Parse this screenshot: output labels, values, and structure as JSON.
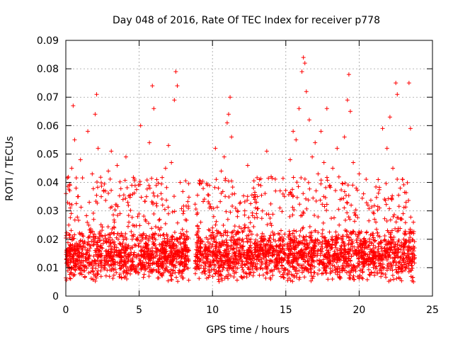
{
  "chart_data": {
    "type": "scatter",
    "title": "Day 048 of 2016, Rate Of TEC Index for receiver p778",
    "xlabel": "GPS time / hours",
    "ylabel": "ROTI / TECUs",
    "xlim": [
      0,
      25
    ],
    "ylim": [
      0,
      0.09
    ],
    "x_ticks": [
      0,
      5,
      10,
      15,
      20,
      25
    ],
    "x_tick_labels": [
      "0",
      "5",
      "10",
      "15",
      "20",
      "25"
    ],
    "y_ticks": [
      0,
      0.01,
      0.02,
      0.03,
      0.04,
      0.05,
      0.06,
      0.07,
      0.08,
      0.09
    ],
    "y_tick_labels": [
      "0",
      "0.01",
      "0.02",
      "0.03",
      "0.04",
      "0.05",
      "0.06",
      "0.07",
      "0.08",
      "0.09"
    ],
    "grid": true,
    "marker": "+",
    "marker_color": "#ff0000",
    "series": [
      {
        "name": "ROTI",
        "points": [
          [
            0.1,
            0.012
          ],
          [
            0.2,
            0.025
          ],
          [
            0.3,
            0.031
          ],
          [
            0.4,
            0.045
          ],
          [
            0.5,
            0.067
          ],
          [
            0.6,
            0.055
          ],
          [
            0.7,
            0.038
          ],
          [
            0.8,
            0.018
          ],
          [
            0.9,
            0.014
          ],
          [
            1.0,
            0.048
          ],
          [
            1.1,
            0.022
          ],
          [
            1.3,
            0.019
          ],
          [
            1.5,
            0.058
          ],
          [
            1.6,
            0.033
          ],
          [
            1.8,
            0.043
          ],
          [
            1.9,
            0.027
          ],
          [
            2.0,
            0.064
          ],
          [
            2.1,
            0.071
          ],
          [
            2.2,
            0.052
          ],
          [
            2.3,
            0.016
          ],
          [
            2.5,
            0.021
          ],
          [
            2.7,
            0.037
          ],
          [
            2.9,
            0.044
          ],
          [
            3.1,
            0.051
          ],
          [
            3.3,
            0.024
          ],
          [
            3.5,
            0.046
          ],
          [
            3.7,
            0.029
          ],
          [
            3.9,
            0.034
          ],
          [
            4.1,
            0.049
          ],
          [
            4.3,
            0.026
          ],
          [
            4.5,
            0.039
          ],
          [
            4.7,
            0.018
          ],
          [
            4.9,
            0.028
          ],
          [
            5.1,
            0.06
          ],
          [
            5.3,
            0.022
          ],
          [
            5.5,
            0.035
          ],
          [
            5.7,
            0.054
          ],
          [
            5.9,
            0.074
          ],
          [
            6.0,
            0.066
          ],
          [
            6.2,
            0.041
          ],
          [
            6.4,
            0.027
          ],
          [
            6.6,
            0.032
          ],
          [
            6.8,
            0.045
          ],
          [
            7.0,
            0.053
          ],
          [
            7.2,
            0.047
          ],
          [
            7.4,
            0.069
          ],
          [
            7.5,
            0.079
          ],
          [
            7.6,
            0.074
          ],
          [
            7.8,
            0.04
          ],
          [
            8.0,
            0.029
          ],
          [
            8.2,
            0.021
          ],
          [
            8.4,
            0.016
          ],
          [
            8.9,
            0.014
          ],
          [
            9.2,
            0.026
          ],
          [
            9.5,
            0.018
          ],
          [
            9.8,
            0.031
          ],
          [
            10.0,
            0.024
          ],
          [
            10.2,
            0.052
          ],
          [
            10.4,
            0.038
          ],
          [
            10.6,
            0.044
          ],
          [
            10.8,
            0.049
          ],
          [
            11.0,
            0.061
          ],
          [
            11.1,
            0.064
          ],
          [
            11.2,
            0.07
          ],
          [
            11.3,
            0.056
          ],
          [
            11.5,
            0.036
          ],
          [
            11.7,
            0.028
          ],
          [
            11.9,
            0.033
          ],
          [
            12.2,
            0.025
          ],
          [
            12.4,
            0.046
          ],
          [
            12.6,
            0.019
          ],
          [
            12.8,
            0.038
          ],
          [
            13.0,
            0.029
          ],
          [
            13.2,
            0.041
          ],
          [
            13.4,
            0.022
          ],
          [
            13.7,
            0.051
          ],
          [
            14.0,
            0.042
          ],
          [
            14.3,
            0.037
          ],
          [
            14.6,
            0.031
          ],
          [
            14.9,
            0.018
          ],
          [
            15.3,
            0.048
          ],
          [
            15.5,
            0.058
          ],
          [
            15.7,
            0.055
          ],
          [
            15.9,
            0.066
          ],
          [
            16.1,
            0.079
          ],
          [
            16.2,
            0.084
          ],
          [
            16.3,
            0.082
          ],
          [
            16.4,
            0.072
          ],
          [
            16.6,
            0.062
          ],
          [
            16.8,
            0.049
          ],
          [
            17.0,
            0.054
          ],
          [
            17.2,
            0.043
          ],
          [
            17.4,
            0.058
          ],
          [
            17.6,
            0.047
          ],
          [
            17.8,
            0.066
          ],
          [
            18.0,
            0.039
          ],
          [
            18.2,
            0.045
          ],
          [
            18.5,
            0.052
          ],
          [
            18.7,
            0.034
          ],
          [
            19.0,
            0.056
          ],
          [
            19.2,
            0.069
          ],
          [
            19.3,
            0.078
          ],
          [
            19.4,
            0.065
          ],
          [
            19.6,
            0.047
          ],
          [
            19.8,
            0.038
          ],
          [
            20.0,
            0.043
          ],
          [
            20.3,
            0.036
          ],
          [
            20.6,
            0.032
          ],
          [
            21.0,
            0.029
          ],
          [
            21.3,
            0.041
          ],
          [
            21.6,
            0.059
          ],
          [
            21.9,
            0.052
          ],
          [
            22.1,
            0.063
          ],
          [
            22.3,
            0.045
          ],
          [
            22.5,
            0.075
          ],
          [
            22.6,
            0.071
          ],
          [
            22.8,
            0.038
          ],
          [
            23.0,
            0.029
          ],
          [
            23.2,
            0.033
          ],
          [
            23.4,
            0.075
          ],
          [
            23.5,
            0.059
          ],
          [
            23.7,
            0.026
          ]
        ]
      }
    ],
    "dense_band": {
      "description": "Most observations fall in 0.005-0.03 TECU band",
      "segments": [
        [
          0,
          8.4
        ],
        [
          8.8,
          15.0
        ],
        [
          15.1,
          23.8
        ]
      ],
      "y_range": [
        0.005,
        0.03
      ],
      "y_center": 0.015
    }
  }
}
